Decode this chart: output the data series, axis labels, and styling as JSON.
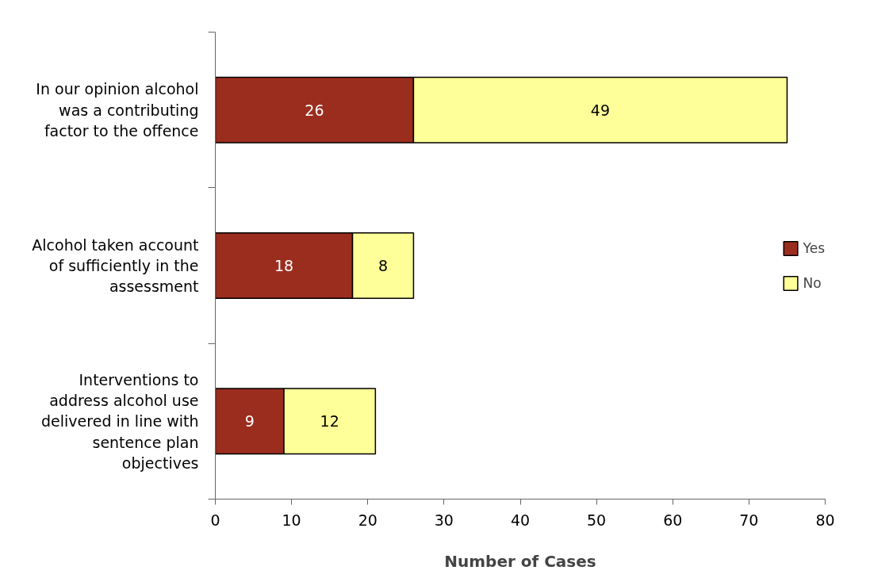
{
  "chart_data": {
    "type": "bar",
    "orientation": "horizontal",
    "stacked": true,
    "categories": [
      "In our opinion alcohol was a contributing factor to the offence",
      "Alcohol taken account of sufficiently in the assessment",
      "Interventions to address alcohol use delivered in line with sentence plan objectives"
    ],
    "series": [
      {
        "name": "Yes",
        "color": "#9b2d1f",
        "values": [
          26,
          18,
          9
        ]
      },
      {
        "name": "No",
        "color": "#ffff99",
        "values": [
          49,
          8,
          12
        ]
      }
    ],
    "xlabel": "Number of Cases",
    "xlim": [
      0,
      80
    ],
    "xticks": [
      0,
      10,
      20,
      30,
      40,
      50,
      60,
      70,
      80
    ],
    "data_labels": true,
    "legend": "right",
    "grid": false
  }
}
